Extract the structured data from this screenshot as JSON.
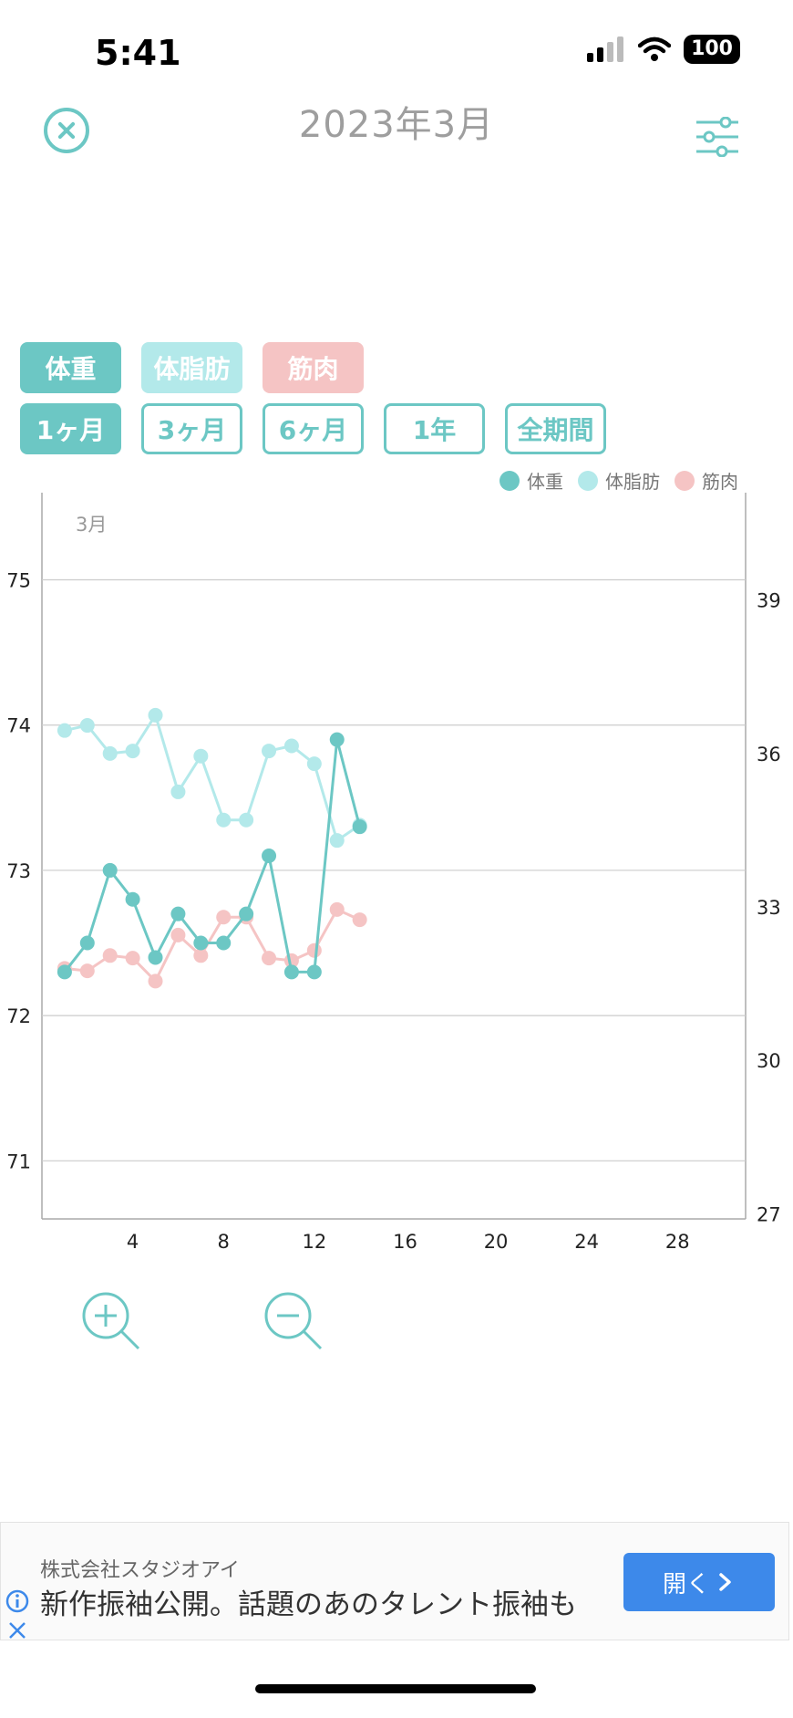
{
  "status_bar": {
    "time": "5:41",
    "battery": "100"
  },
  "header": {
    "title": "2023年3月"
  },
  "metric_chips": [
    {
      "label": "体重",
      "color": "#6cc7c4"
    },
    {
      "label": "体脂肪",
      "color": "#b3e9ea"
    },
    {
      "label": "筋肉",
      "color": "#f5c4c4"
    }
  ],
  "period_chips": [
    {
      "label": "1ヶ月",
      "active": true
    },
    {
      "label": "3ヶ月",
      "active": false
    },
    {
      "label": "6ヶ月",
      "active": false
    },
    {
      "label": "1年",
      "active": false
    },
    {
      "label": "全期間",
      "active": false
    }
  ],
  "legend": [
    {
      "label": "体重",
      "color": "#6cc7c4"
    },
    {
      "label": "体脂肪",
      "color": "#b3e9ea"
    },
    {
      "label": "筋肉",
      "color": "#f5c4c4"
    }
  ],
  "chart_data": {
    "type": "line",
    "month_label": "3月",
    "x": [
      1,
      2,
      3,
      4,
      5,
      6,
      7,
      8,
      9,
      10,
      11,
      12,
      13,
      14
    ],
    "xlim": [
      0,
      31
    ],
    "xticks": [
      4,
      8,
      12,
      16,
      20,
      24,
      28
    ],
    "left_axis": {
      "ticks": [
        71,
        72,
        73,
        74,
        75
      ],
      "range": [
        70.6,
        75.6
      ]
    },
    "right_axis": {
      "ticks": [
        27,
        30,
        33,
        36,
        39
      ],
      "range": [
        26.9,
        41.1
      ]
    },
    "grid": true,
    "series": [
      {
        "name": "体重",
        "axis": "left",
        "color": "#6cc7c4",
        "values": [
          72.3,
          72.5,
          73.0,
          72.8,
          72.4,
          72.7,
          72.5,
          72.5,
          72.7,
          73.1,
          72.3,
          72.3,
          73.9,
          73.3
        ]
      },
      {
        "name": "体脂肪",
        "axis": "right",
        "color": "#b3e9ea",
        "values": [
          36.45,
          36.55,
          36.0,
          36.05,
          36.75,
          35.25,
          35.95,
          34.7,
          34.7,
          36.05,
          36.15,
          35.8,
          34.3,
          34.6
        ]
      },
      {
        "name": "筋肉",
        "axis": "right",
        "color": "#f5c4c4",
        "values": [
          31.8,
          31.75,
          32.05,
          32.0,
          31.55,
          32.45,
          32.05,
          32.8,
          32.8,
          32.0,
          31.95,
          32.15,
          32.95,
          32.75
        ]
      }
    ]
  },
  "zoom": {
    "in_label": "zoom-in",
    "out_label": "zoom-out"
  },
  "ad": {
    "company": "株式会社スタジオアイ",
    "headline": "新作振袖公開。話題のあのタレント振袖も",
    "open_label": "開く",
    "accent": "#3d89ea"
  }
}
